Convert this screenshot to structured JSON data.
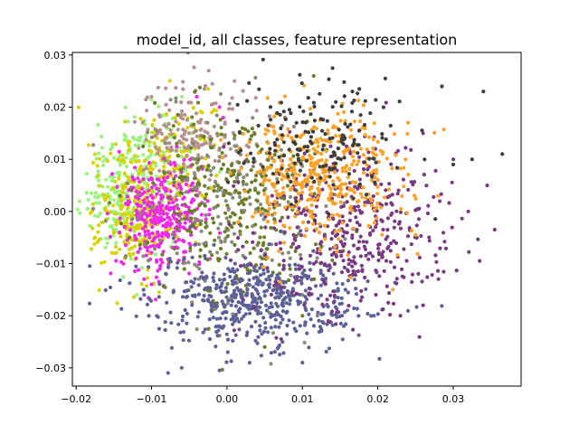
{
  "chart_data": {
    "type": "scatter",
    "title": "model_id, all classes, feature representation",
    "xlabel": "",
    "ylabel": "",
    "xlim": [
      -0.0205,
      0.039
    ],
    "ylim": [
      -0.0335,
      0.0305
    ],
    "xticks": [
      -0.02,
      -0.01,
      0.0,
      0.01,
      0.02,
      0.03
    ],
    "xtick_labels": [
      "−0.02",
      "−0.01",
      "0.00",
      "0.01",
      "0.02",
      "0.03"
    ],
    "yticks": [
      -0.03,
      -0.02,
      -0.01,
      0.0,
      0.01,
      0.02,
      0.03
    ],
    "ytick_labels": [
      "−0.03",
      "−0.02",
      "−0.01",
      "0.00",
      "0.01",
      "0.02",
      "0.03"
    ],
    "grid": false,
    "legend": "none",
    "series": [
      {
        "color": "#98f57a",
        "clusters": [
          {
            "cx": -0.0135,
            "cy": 0.0025,
            "sx": 0.0027,
            "sy": 0.006,
            "n": 200
          },
          {
            "cx": -0.009,
            "cy": 0.012,
            "sx": 0.003,
            "sy": 0.0045,
            "n": 80
          }
        ],
        "points": [
          [
            -0.0185,
            0.0005
          ],
          [
            -0.0195,
            -0.0003
          ],
          [
            -0.016,
            0.01
          ],
          [
            -0.006,
            0.022
          ],
          [
            -0.012,
            -0.016
          ]
        ]
      },
      {
        "color": "#dad200",
        "clusters": [
          {
            "cx": -0.012,
            "cy": 0.0,
            "sx": 0.0026,
            "sy": 0.0063,
            "n": 260
          },
          {
            "cx": -0.006,
            "cy": 0.011,
            "sx": 0.003,
            "sy": 0.005,
            "n": 90
          }
        ],
        "points": [
          [
            -0.0175,
            -0.005
          ],
          [
            -0.009,
            -0.0155
          ],
          [
            -0.0025,
            0.0235
          ],
          [
            -0.002,
            0.019
          ]
        ]
      },
      {
        "color": "#b5908f",
        "clusters": [
          {
            "cx": -0.005,
            "cy": 0.015,
            "sx": 0.004,
            "sy": 0.005,
            "n": 160
          }
        ],
        "points": [
          [
            -0.01,
            0.022
          ],
          [
            -0.003,
            0.0235
          ],
          [
            0.001,
            0.025
          ]
        ]
      },
      {
        "color": "#f028ee",
        "clusters": [
          {
            "cx": -0.0085,
            "cy": -0.001,
            "sx": 0.0026,
            "sy": 0.0055,
            "n": 340
          }
        ],
        "points": [
          [
            -0.004,
            0.022
          ],
          [
            -0.001,
            0.02
          ],
          [
            -0.0005,
            0.018
          ],
          [
            -0.011,
            -0.013
          ]
        ]
      },
      {
        "color": "#8a8a76",
        "clusters": [
          {
            "cx": 0.0,
            "cy": 0.001,
            "sx": 0.0065,
            "sy": 0.01,
            "n": 240
          }
        ],
        "points": [
          [
            0.01,
            -0.016
          ],
          [
            0.012,
            -0.02
          ]
        ]
      },
      {
        "color": "#6b7f26",
        "clusters": [
          {
            "cx": 0.001,
            "cy": 0.002,
            "sx": 0.006,
            "sy": 0.009,
            "n": 270
          }
        ],
        "points": [
          [
            0.005,
            -0.026
          ],
          [
            0.0115,
            0.026
          ],
          [
            0.01,
            -0.02
          ]
        ]
      },
      {
        "color": "#5e6196",
        "clusters": [
          {
            "cx": 0.004,
            "cy": -0.017,
            "sx": 0.0075,
            "sy": 0.0045,
            "n": 520
          }
        ],
        "points": [
          [
            -0.006,
            -0.03
          ],
          [
            -0.001,
            -0.0305
          ],
          [
            0.003,
            -0.029
          ],
          [
            0.01,
            -0.029
          ],
          [
            -0.009,
            -0.0225
          ],
          [
            0.0195,
            -0.02
          ]
        ]
      },
      {
        "color": "#7a3a82",
        "clusters": [
          {
            "cx": 0.017,
            "cy": -0.004,
            "sx": 0.0065,
            "sy": 0.008,
            "n": 420
          }
        ],
        "points": [
          [
            0.0345,
            0.005
          ],
          [
            0.0355,
            -0.0035
          ],
          [
            0.0335,
            -0.0095
          ],
          [
            0.03,
            0.01
          ],
          [
            0.026,
            -0.018
          ],
          [
            0.026,
            0.015
          ],
          [
            0.023,
            -0.02
          ],
          [
            0.032,
            0.0
          ]
        ]
      },
      {
        "color": "#fca227",
        "clusters": [
          {
            "cx": 0.012,
            "cy": 0.007,
            "sx": 0.0055,
            "sy": 0.0065,
            "n": 420
          }
        ],
        "points": [
          [
            0.025,
            -0.0045
          ],
          [
            0.024,
            0.017
          ],
          [
            0.022,
            -0.015
          ]
        ]
      },
      {
        "color": "#3d3d3b",
        "clusters": [
          {
            "cx": 0.0115,
            "cy": 0.014,
            "sx": 0.006,
            "sy": 0.0055,
            "n": 170
          }
        ],
        "points": [
          [
            0.034,
            0.023
          ],
          [
            0.0365,
            0.011
          ],
          [
            0.0285,
            0.024
          ],
          [
            0.0325,
            0.01
          ],
          [
            0.021,
            0.0255
          ],
          [
            0.014,
            0.0275
          ],
          [
            0.03,
            0.009
          ]
        ]
      }
    ]
  }
}
